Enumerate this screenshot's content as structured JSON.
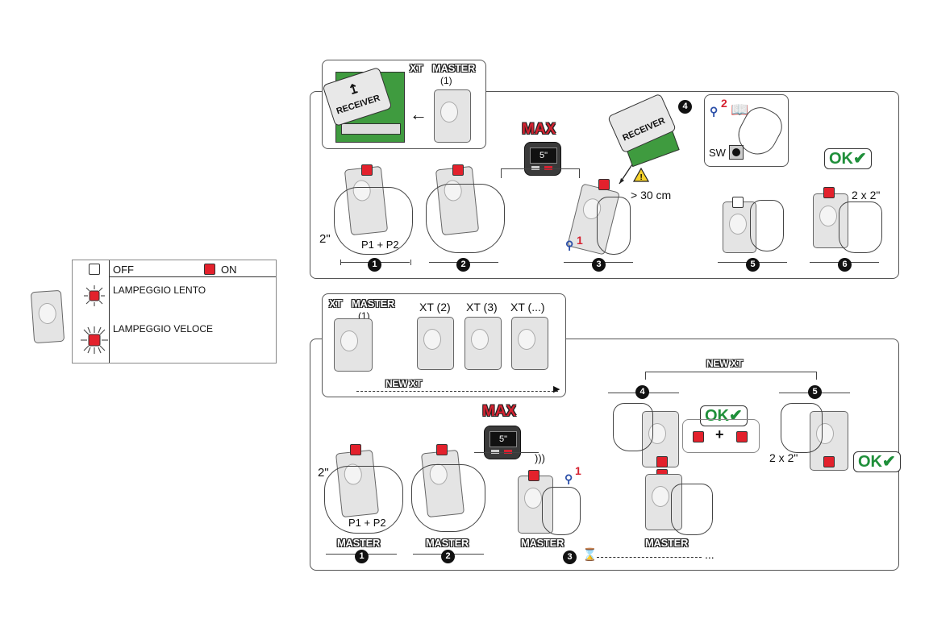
{
  "legend": {
    "off_label": "OFF",
    "on_label": "ON",
    "slow_label": "LAMPEGGIO LENTO",
    "fast_label": "LAMPEGGIO VELOCE"
  },
  "top": {
    "inset_header_xt": "XT",
    "inset_header_master": "MASTER",
    "inset_header_num": "(1)",
    "receiver_label": "RECEIVER",
    "max_label": "MAX",
    "display_value": "5\"",
    "hold_time": "2\"",
    "buttons": "P1 + P2",
    "distance": "> 30 cm",
    "sw_label": "SW",
    "pin_num": "1",
    "pin_num2": "2",
    "ok_label": "OK",
    "presses": "2 x 2\"",
    "steps": [
      "1",
      "2",
      "3",
      "4",
      "5",
      "6"
    ]
  },
  "bottom": {
    "inset_xt": "XT",
    "inset_master": "MASTER",
    "inset_num": "(1)",
    "xt2": "XT (2)",
    "xt3": "XT (3)",
    "xtn": "XT (...)",
    "new_xt": "NEW XT",
    "new_xt_top": "NEW XT",
    "max_label": "MAX",
    "display_value": "5\"",
    "hold_time": "2\"",
    "buttons": "P1 + P2",
    "master_label": "MASTER",
    "pin_num": "1",
    "ok_label": "OK",
    "plus": "+",
    "presses": "2 x 2\"",
    "ellipsis": "...",
    "steps": [
      "1",
      "2",
      "3",
      "4",
      "5"
    ]
  },
  "colors": {
    "led_on": "#e3212c",
    "ok_green": "#1f8f3a",
    "receiver_green": "#3f9b3f",
    "max_red": "#d62231"
  }
}
